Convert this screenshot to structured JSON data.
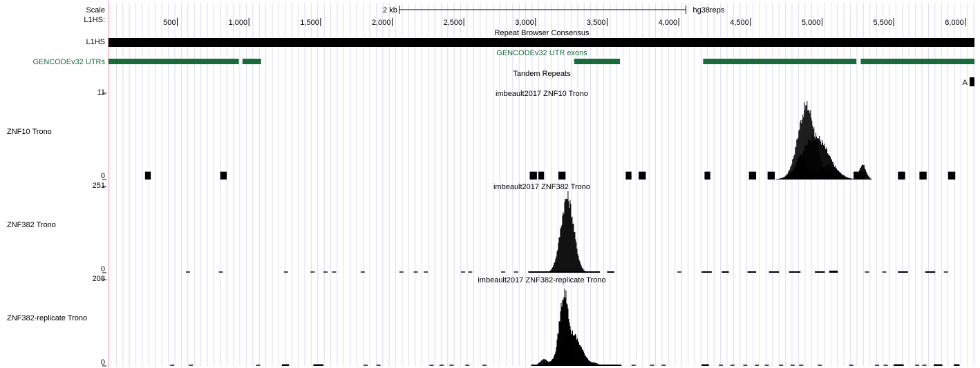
{
  "genome_region": {
    "start": 20,
    "end": 6064
  },
  "scale": {
    "label": "Scale",
    "bar_label": "2 kb",
    "bar_length": 2000,
    "bar_start": 2050,
    "assembly": "hg38reps"
  },
  "ruler": {
    "label": "L1HS:",
    "ticks": [
      {
        "pos": 500,
        "label": "500"
      },
      {
        "pos": 1000,
        "label": "1,000"
      },
      {
        "pos": 1500,
        "label": "1,500"
      },
      {
        "pos": 2000,
        "label": "2,000"
      },
      {
        "pos": 2500,
        "label": "2,500"
      },
      {
        "pos": 3000,
        "label": "3,000"
      },
      {
        "pos": 3500,
        "label": "3,500"
      },
      {
        "pos": 4000,
        "label": "4,000"
      },
      {
        "pos": 4500,
        "label": "4,500"
      },
      {
        "pos": 5000,
        "label": "5,000"
      },
      {
        "pos": 5500,
        "label": "5,500"
      },
      {
        "pos": 6000,
        "label": "6,000"
      }
    ]
  },
  "tracks": {
    "consensus": {
      "label": "L1HS",
      "title": "Repeat Browser Consensus",
      "start": 20,
      "end": 6064,
      "color": "#000000"
    },
    "utrs": {
      "label": "GENCODEv32 UTRs",
      "title": "GENCODEv32 UTR exons",
      "color": "#1a6b3c",
      "blocks": [
        [
          20,
          930
        ],
        [
          955,
          1085
        ],
        [
          3270,
          3590
        ],
        [
          4170,
          5240
        ],
        [
          5270,
          6064
        ]
      ]
    },
    "tandem": {
      "title": "Tandem Repeats",
      "block_label": "A",
      "blocks": [
        [
          6030,
          6064
        ]
      ]
    }
  },
  "signal_tracks": [
    {
      "id": "znf10",
      "label": "ZNF10 Trono",
      "title": "imbeault2017 ZNF10 Trono",
      "ymax_label": "11",
      "ymin_label": "0",
      "ymax": 11,
      "color": "#000000",
      "peaks": [
        {
          "center": 4890,
          "width": 60,
          "height": 10.2
        },
        {
          "center": 4950,
          "width": 90,
          "height": 6.0
        },
        {
          "center": 5040,
          "width": 70,
          "height": 2.0
        },
        {
          "center": 4850,
          "width": 40,
          "height": 3.5
        },
        {
          "center": 5280,
          "width": 25,
          "height": 2.1
        }
      ],
      "blips": [
        {
          "start": 275,
          "end": 315,
          "height": 1
        },
        {
          "start": 800,
          "end": 845,
          "height": 1
        },
        {
          "start": 2960,
          "end": 3010,
          "height": 1
        },
        {
          "start": 3020,
          "end": 3060,
          "height": 1
        },
        {
          "start": 3160,
          "end": 3210,
          "height": 1
        },
        {
          "start": 3630,
          "end": 3670,
          "height": 1
        },
        {
          "start": 3720,
          "end": 3770,
          "height": 1
        },
        {
          "start": 4180,
          "end": 4220,
          "height": 1
        },
        {
          "start": 4490,
          "end": 4540,
          "height": 1
        },
        {
          "start": 4620,
          "end": 4670,
          "height": 1
        },
        {
          "start": 4780,
          "end": 5100,
          "height": 1
        },
        {
          "start": 5220,
          "end": 5300,
          "height": 1
        },
        {
          "start": 5530,
          "end": 5580,
          "height": 1
        },
        {
          "start": 5680,
          "end": 5730,
          "height": 1
        },
        {
          "start": 5880,
          "end": 5930,
          "height": 1
        }
      ]
    },
    {
      "id": "znf382",
      "label": "ZNF382 Trono",
      "title": "imbeault2017 ZNF382 Trono",
      "ymax_label": "251",
      "ymin_label": "0",
      "ymax": 251,
      "color": "#000000",
      "peaks": [
        {
          "center": 3220,
          "width": 45,
          "height": 240
        }
      ],
      "blips": [
        {
          "start": 2950,
          "end": 3450,
          "height": 2
        },
        {
          "start": 3500,
          "end": 3550,
          "height": 2
        },
        {
          "start": 4160,
          "end": 4230,
          "height": 3
        },
        {
          "start": 4300,
          "end": 4350,
          "height": 3
        },
        {
          "start": 4480,
          "end": 4540,
          "height": 3
        },
        {
          "start": 4630,
          "end": 4700,
          "height": 4
        },
        {
          "start": 4770,
          "end": 4850,
          "height": 4
        },
        {
          "start": 4950,
          "end": 5020,
          "height": 4
        },
        {
          "start": 5050,
          "end": 5110,
          "height": 6
        },
        {
          "start": 5530,
          "end": 5600,
          "height": 4
        },
        {
          "start": 5720,
          "end": 5790,
          "height": 4
        }
      ],
      "dashes": [
        560,
        790,
        1245,
        1430,
        1520,
        1580,
        1780,
        2050,
        2150,
        2220,
        2480,
        2530,
        2760,
        2850,
        3990,
        5300,
        5420,
        5850
      ]
    },
    {
      "id": "znf382rep",
      "label": "ZNF382-replicate Trono",
      "title": "imbeault2017 ZNF382-replicate Trono",
      "ymax_label": "208",
      "ymin_label": "0",
      "ymax": 208,
      "color": "#000000",
      "peaks": [
        {
          "center": 3200,
          "width": 35,
          "height": 195
        },
        {
          "center": 3240,
          "width": 70,
          "height": 90
        },
        {
          "center": 3060,
          "width": 30,
          "height": 18
        },
        {
          "center": 3390,
          "width": 40,
          "height": 10
        }
      ],
      "blips": [
        {
          "start": 2970,
          "end": 3600,
          "height": 2
        },
        {
          "start": 1230,
          "end": 1280,
          "height": 4
        },
        {
          "start": 1450,
          "end": 1520,
          "height": 4
        },
        {
          "start": 4160,
          "end": 4210,
          "height": 4
        },
        {
          "start": 5500,
          "end": 5570,
          "height": 4
        },
        {
          "start": 5780,
          "end": 5840,
          "height": 4
        },
        {
          "start": 5920,
          "end": 5960,
          "height": 4
        }
      ],
      "dashes": [
        450,
        580,
        1050,
        1800,
        1890,
        2260,
        2330,
        2400,
        2510,
        2630,
        3670,
        3800,
        3880,
        4280,
        4360,
        4450,
        4530,
        4600,
        4700,
        4780,
        4840,
        4970,
        5190,
        5370,
        5430,
        5650,
        5700
      ]
    }
  ]
}
